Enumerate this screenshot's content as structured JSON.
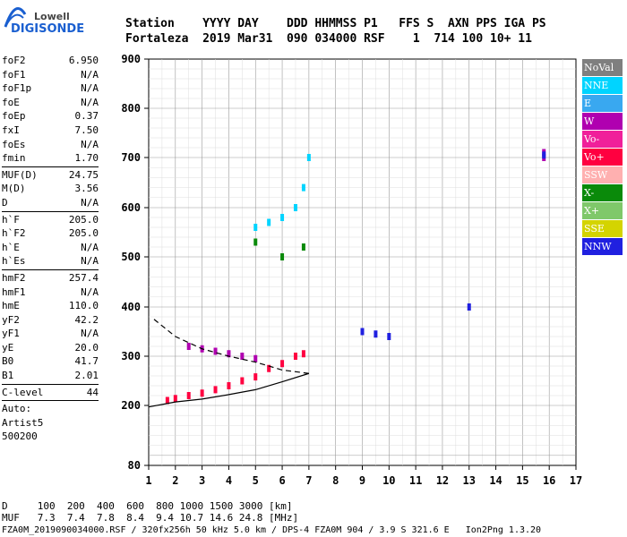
{
  "header": {
    "logo_line1": "Lowell",
    "logo_line2": "DIGISONDE",
    "labels": "Station    YYYY DAY    DDD HHMMSS P1   FFS S  AXN PPS IGA PS",
    "values": "Fortaleza  2019 Mar31  090 034000 RSF    1  714 100 10+ 11"
  },
  "params": {
    "group1": [
      {
        "k": "foF2",
        "v": "6.950"
      },
      {
        "k": "foF1",
        "v": "N/A"
      },
      {
        "k": "foF1p",
        "v": "N/A"
      },
      {
        "k": "foE",
        "v": "N/A"
      },
      {
        "k": "foEp",
        "v": "0.37"
      },
      {
        "k": "fxI",
        "v": "7.50"
      },
      {
        "k": "foEs",
        "v": "N/A"
      },
      {
        "k": "fmin",
        "v": "1.70"
      }
    ],
    "group2": [
      {
        "k": "MUF(D)",
        "v": "24.75"
      },
      {
        "k": "M(D)",
        "v": "3.56"
      },
      {
        "k": "D",
        "v": "N/A"
      }
    ],
    "group3": [
      {
        "k": "h`F",
        "v": "205.0"
      },
      {
        "k": "h`F2",
        "v": "205.0"
      },
      {
        "k": "h`E",
        "v": "N/A"
      },
      {
        "k": "h`Es",
        "v": "N/A"
      }
    ],
    "group4": [
      {
        "k": "hmF2",
        "v": "257.4"
      },
      {
        "k": "hmF1",
        "v": "N/A"
      },
      {
        "k": "hmE",
        "v": "110.0"
      },
      {
        "k": "yF2",
        "v": "42.2"
      },
      {
        "k": "yF1",
        "v": "N/A"
      },
      {
        "k": "yE",
        "v": "20.0"
      },
      {
        "k": "B0",
        "v": "41.7"
      },
      {
        "k": "B1",
        "v": "2.01"
      }
    ],
    "group5": [
      {
        "k": "C-level",
        "v": "44"
      }
    ],
    "auto_label": "Auto:",
    "artist": "Artist5",
    "artist_id": "500200"
  },
  "legend": [
    {
      "label": "NoVal",
      "color": "#7f7f7f"
    },
    {
      "label": "NNE",
      "color": "#00d4ff"
    },
    {
      "label": "E",
      "color": "#39a8f0"
    },
    {
      "label": "W",
      "color": "#b000b0"
    },
    {
      "label": "Vo-",
      "color": "#f0209a"
    },
    {
      "label": "Vo+",
      "color": "#ff0040"
    },
    {
      "label": "SSW",
      "color": "#ffb0b0"
    },
    {
      "label": "X-",
      "color": "#0a8a0a"
    },
    {
      "label": "X+",
      "color": "#7fc86a"
    },
    {
      "label": "SSE",
      "color": "#d4d400"
    },
    {
      "label": "NNW",
      "color": "#2020e0"
    }
  ],
  "bottom": {
    "line1": "D     100  200  400  600  800 1000 1500 3000 [km]",
    "line2": "MUF   7.3  7.4  7.8  8.4  9.4 10.7 14.6 24.8 [MHz]",
    "line3": "FZA0M_2019090034000.RSF / 320fx256h 50 kHz 5.0 km / DPS-4 FZA0M 904 / 3.9 S 321.6 E   Ion2Png 1.3.20"
  },
  "chart_data": {
    "type": "scatter",
    "title": "",
    "xlabel": "",
    "ylabel": "",
    "xlim": [
      1,
      17
    ],
    "ylim": [
      80,
      900
    ],
    "x_ticks": [
      "1",
      "2",
      "3",
      "4",
      "5",
      "6",
      "7",
      "8",
      "9",
      "10",
      "11",
      "12",
      "13",
      "14",
      "15",
      "16",
      "17"
    ],
    "y_ticks": [
      "80",
      "200",
      "300",
      "400",
      "500",
      "600",
      "700",
      "800",
      "900"
    ],
    "y_tick_values": [
      80,
      200,
      300,
      400,
      500,
      600,
      700,
      800,
      900
    ],
    "grid": true,
    "legend_position": "right",
    "series": [
      {
        "name": "Vo+",
        "note_color": "#ff0040",
        "points": [
          [
            1.7,
            210
          ],
          [
            2.0,
            214
          ],
          [
            2.5,
            220
          ],
          [
            3.0,
            225
          ],
          [
            3.5,
            232
          ],
          [
            4.0,
            240
          ],
          [
            4.5,
            250
          ],
          [
            5.0,
            258
          ],
          [
            5.5,
            275
          ],
          [
            6.0,
            285
          ],
          [
            6.5,
            300
          ],
          [
            6.8,
            305
          ]
        ]
      },
      {
        "name": "NNE",
        "note_color": "#00d4ff",
        "points": [
          [
            5.0,
            560
          ],
          [
            5.5,
            570
          ],
          [
            6.0,
            580
          ],
          [
            6.5,
            600
          ],
          [
            6.8,
            640
          ],
          [
            7.0,
            700
          ]
        ]
      },
      {
        "name": "W",
        "note_color": "#b000b0",
        "points": [
          [
            2.5,
            320
          ],
          [
            3.0,
            315
          ],
          [
            3.5,
            310
          ],
          [
            4.0,
            305
          ],
          [
            4.5,
            300
          ],
          [
            5.0,
            295
          ],
          [
            15.8,
            700
          ],
          [
            15.8,
            710
          ]
        ]
      },
      {
        "name": "NNW",
        "note_color": "#2020e0",
        "points": [
          [
            9.0,
            350
          ],
          [
            9.5,
            345
          ],
          [
            10.0,
            340
          ],
          [
            13.0,
            400
          ],
          [
            15.8,
            705
          ]
        ]
      },
      {
        "name": "X-",
        "note_color": "#0a8a0a",
        "points": [
          [
            5.0,
            530
          ],
          [
            6.0,
            500
          ],
          [
            6.8,
            520
          ]
        ]
      }
    ],
    "profile_lines": [
      {
        "name": "leading-edge",
        "points": [
          [
            1.0,
            197
          ],
          [
            2.0,
            207
          ],
          [
            3.0,
            213
          ],
          [
            4.0,
            222
          ],
          [
            5.0,
            232
          ],
          [
            6.0,
            248
          ],
          [
            7.0,
            265
          ]
        ]
      },
      {
        "name": "model-dashed",
        "points": [
          [
            1.2,
            375
          ],
          [
            2.0,
            340
          ],
          [
            3.0,
            315
          ],
          [
            4.0,
            300
          ],
          [
            5.0,
            288
          ],
          [
            6.0,
            272
          ],
          [
            7.0,
            265
          ]
        ]
      }
    ]
  }
}
